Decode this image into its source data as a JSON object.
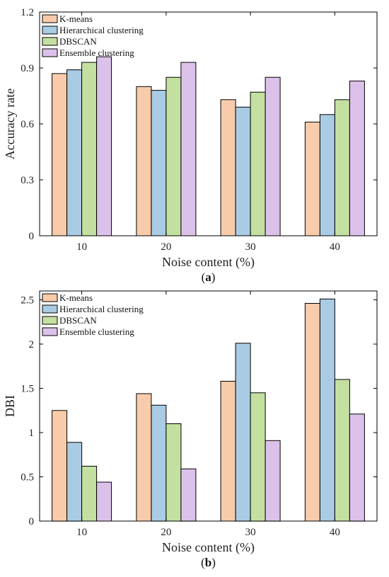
{
  "colors": {
    "K-means": "#f8ccaa",
    "Hierarchical clustering": "#a9cbe3",
    "DBSCAN": "#c4e0a1",
    "Ensemble clustering": "#dcc2ea"
  },
  "chart_data": [
    {
      "type": "bar",
      "caption_open": "(",
      "caption_letter": "a",
      "caption_close": ")",
      "xlabel": "Noise content (%)",
      "ylabel": "Accuracy rate",
      "categories": [
        "10",
        "20",
        "30",
        "40"
      ],
      "ylim": [
        0,
        1.2
      ],
      "yticks": [
        "0",
        "0.3",
        "0.6",
        "0.9",
        "1.2"
      ],
      "ytick_values": [
        0,
        0.3,
        0.6,
        0.9,
        1.2
      ],
      "legend_position": "top-left",
      "grid": false,
      "series": [
        {
          "name": "K-means",
          "values": [
            0.87,
            0.8,
            0.73,
            0.61
          ]
        },
        {
          "name": "Hierarchical clustering",
          "values": [
            0.89,
            0.78,
            0.69,
            0.65
          ]
        },
        {
          "name": "DBSCAN",
          "values": [
            0.93,
            0.85,
            0.77,
            0.73
          ]
        },
        {
          "name": "Ensemble clustering",
          "values": [
            0.96,
            0.93,
            0.85,
            0.83
          ]
        }
      ]
    },
    {
      "type": "bar",
      "caption_open": "(",
      "caption_letter": "b",
      "caption_close": ")",
      "xlabel": "Noise content (%)",
      "ylabel": "DBI",
      "categories": [
        "10",
        "20",
        "30",
        "40"
      ],
      "ylim": [
        0,
        2.6
      ],
      "yticks": [
        "0",
        "0.5",
        "1",
        "1.5",
        "2",
        "2.5"
      ],
      "ytick_values": [
        0,
        0.5,
        1,
        1.5,
        2,
        2.5
      ],
      "legend_position": "top-left",
      "grid": false,
      "series": [
        {
          "name": "K-means",
          "values": [
            1.25,
            1.44,
            1.58,
            2.46
          ]
        },
        {
          "name": "Hierarchical clustering",
          "values": [
            0.89,
            1.31,
            2.01,
            2.51
          ]
        },
        {
          "name": "DBSCAN",
          "values": [
            0.62,
            1.1,
            1.45,
            1.6
          ]
        },
        {
          "name": "Ensemble clustering",
          "values": [
            0.44,
            0.59,
            0.91,
            1.21
          ]
        }
      ]
    }
  ]
}
